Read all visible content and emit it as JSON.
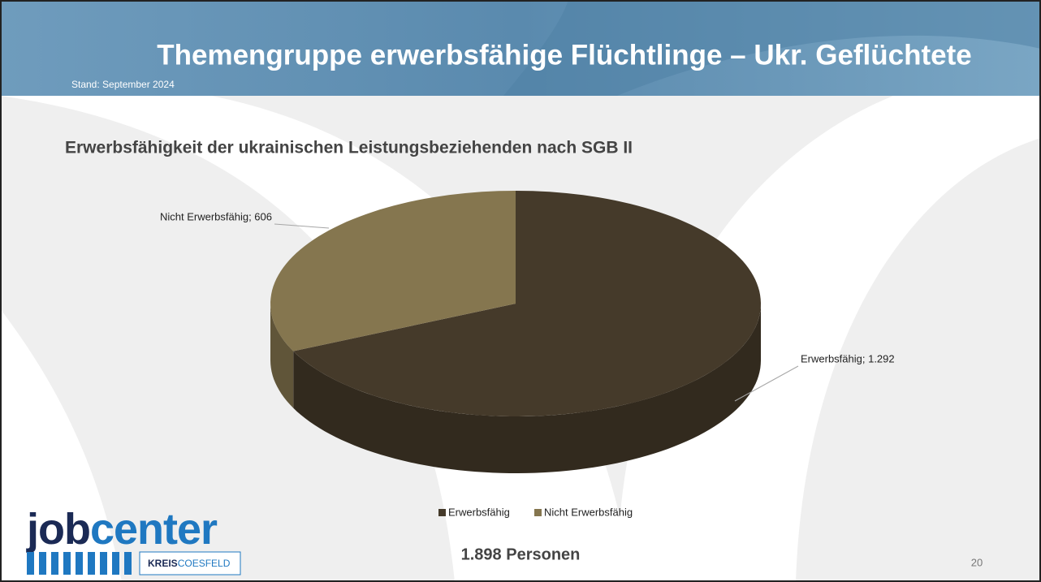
{
  "slide": {
    "title": "Themengruppe erwerbsfähige Flüchtlinge – Ukr. Geflüchtete",
    "date": "Stand: September 2024",
    "total": "1.898 Personen",
    "page_number": "20",
    "logo": {
      "part1": "job",
      "part2": "center",
      "org1": "KREIS",
      "org2": "COESFELD"
    }
  },
  "chart_data": {
    "type": "pie",
    "title": "Erwerbsfähigkeit der ukrainischen Leistungsbeziehenden nach SGB II",
    "categories": [
      "Erwerbsfähig",
      "Nicht Erwerbsfähig"
    ],
    "values": [
      1292,
      606
    ],
    "value_labels": [
      "Erwerbsfähig; 1.292",
      "Nicht Erwerbsfähig; 606"
    ],
    "colors": [
      "#453a2a",
      "#85764f"
    ],
    "legend": "bottom"
  }
}
